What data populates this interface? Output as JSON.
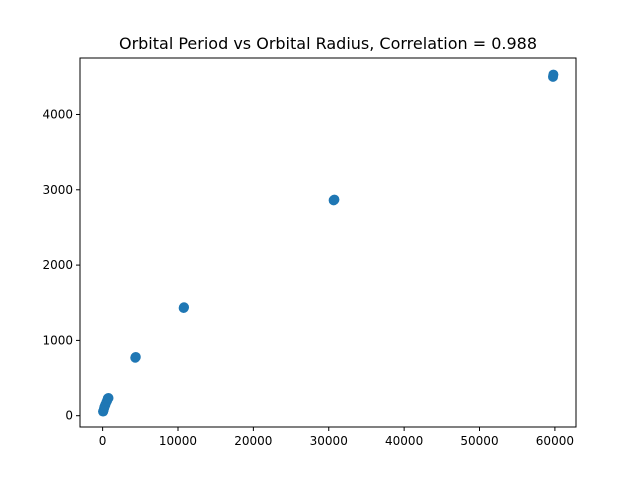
{
  "chart_data": {
    "type": "scatter",
    "title": "Orbital Period vs Orbital Radius, Correlation = 0.988",
    "xlabel": "",
    "ylabel": "",
    "xlim": [
      -3000,
      62800
    ],
    "ylim": [
      -150,
      4750
    ],
    "xticks": [
      0,
      10000,
      20000,
      30000,
      40000,
      50000,
      60000
    ],
    "yticks": [
      0,
      1000,
      2000,
      3000,
      4000
    ],
    "grid": false,
    "marker_color": "#1f77b4",
    "points": [
      {
        "x": 60,
        "y": 55
      },
      {
        "x": 90,
        "y": 60
      },
      {
        "x": 150,
        "y": 80
      },
      {
        "x": 220,
        "y": 110
      },
      {
        "x": 300,
        "y": 130
      },
      {
        "x": 380,
        "y": 150
      },
      {
        "x": 500,
        "y": 180
      },
      {
        "x": 600,
        "y": 200
      },
      {
        "x": 690,
        "y": 230
      },
      {
        "x": 780,
        "y": 235
      },
      {
        "x": 4330,
        "y": 770
      },
      {
        "x": 4400,
        "y": 780
      },
      {
        "x": 10750,
        "y": 1430
      },
      {
        "x": 10800,
        "y": 1440
      },
      {
        "x": 30650,
        "y": 2860
      },
      {
        "x": 30750,
        "y": 2870
      },
      {
        "x": 59750,
        "y": 4500
      },
      {
        "x": 59800,
        "y": 4530
      }
    ]
  }
}
